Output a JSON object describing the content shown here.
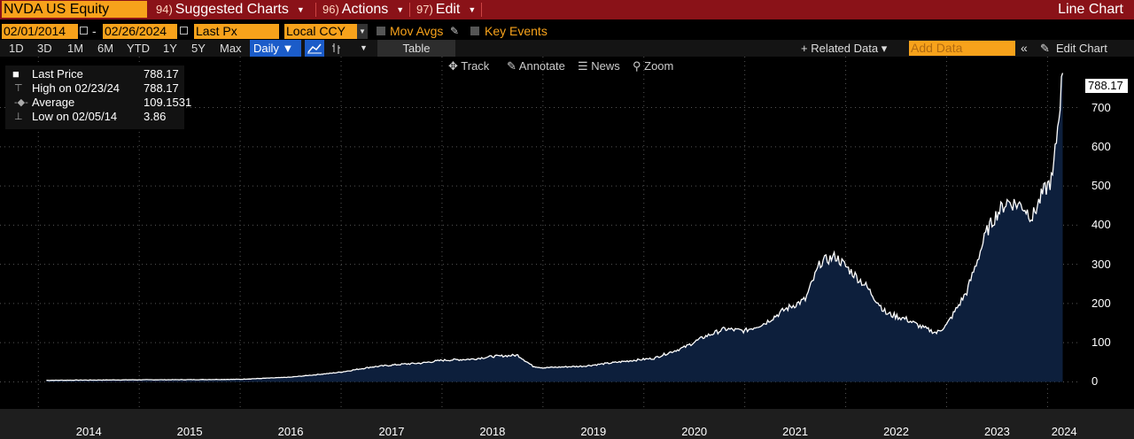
{
  "header": {
    "security": "NVDA US Equity",
    "menus": [
      {
        "num": "94)",
        "label": "Suggested Charts"
      },
      {
        "num": "96)",
        "label": "Actions"
      },
      {
        "num": "97)",
        "label": "Edit"
      }
    ],
    "right_title": "Line Chart"
  },
  "controls": {
    "start_date": "02/01/2014",
    "end_date": "02/26/2024",
    "dash": "-",
    "field": "Last Px",
    "currency": "Local CCY",
    "mov_avgs": "Mov Avgs",
    "key_events": "Key Events"
  },
  "periods": [
    "1D",
    "3D",
    "1M",
    "6M",
    "YTD",
    "1Y",
    "5Y",
    "Max"
  ],
  "frequency": "Daily ▼",
  "table_label": "Table",
  "related_data": "+ Related Data ▾",
  "add_data_placeholder": "Add Data",
  "edit_chart": "Edit Chart",
  "tools": [
    "Track",
    "Annotate",
    "News",
    "Zoom"
  ],
  "legend": [
    {
      "label": "Last Price",
      "value": "788.17"
    },
    {
      "label": "High on 02/23/24",
      "value": "788.17"
    },
    {
      "label": "Average",
      "value": "109.1531"
    },
    {
      "label": "Low on 02/05/14",
      "value": "3.86"
    }
  ],
  "chart_data": {
    "type": "area",
    "title": "",
    "xlabel": "",
    "ylabel": "",
    "series": [
      {
        "x": [
          2014.08,
          2014.5,
          2015.0,
          2015.5,
          2016.0,
          2016.5,
          2016.9,
          2017.0,
          2017.3,
          2017.6,
          2017.8,
          2018.0,
          2018.3,
          2018.5,
          2018.75,
          2018.9,
          2019.0,
          2019.4,
          2019.6,
          2019.9,
          2020.1,
          2020.2,
          2020.4,
          2020.6,
          2020.8,
          2021.0,
          2021.2,
          2021.4,
          2021.6,
          2021.75,
          2021.9,
          2022.0,
          2022.2,
          2022.4,
          2022.6,
          2022.75,
          2022.9,
          2023.0,
          2023.2,
          2023.4,
          2023.5,
          2023.6,
          2023.75,
          2023.85,
          2023.95,
          2024.05,
          2024.1,
          2024.15
        ],
        "values": [
          3.9,
          4.5,
          5.2,
          5.5,
          6.5,
          12,
          22,
          25,
          38,
          45,
          48,
          55,
          58,
          65,
          68,
          40,
          36,
          40,
          46,
          55,
          60,
          70,
          88,
          115,
          135,
          130,
          150,
          185,
          210,
          305,
          320,
          295,
          245,
          175,
          160,
          140,
          125,
          145,
          230,
          385,
          430,
          460,
          450,
          420,
          480,
          520,
          650,
          788.17
        ]
      }
    ],
    "y_ticks": [
      "0",
      "100",
      "200",
      "300",
      "400",
      "500",
      "600",
      "700"
    ],
    "x_ticks": [
      "2014",
      "2015",
      "2016",
      "2017",
      "2018",
      "2019",
      "2020",
      "2021",
      "2022",
      "2023",
      "2024"
    ],
    "ylim": [
      -60,
      830
    ],
    "last_value_label": "788.17",
    "colors": {
      "line": "#ffffff",
      "fill": "#0d1f3c",
      "grid": "#444444"
    },
    "grid": true
  }
}
